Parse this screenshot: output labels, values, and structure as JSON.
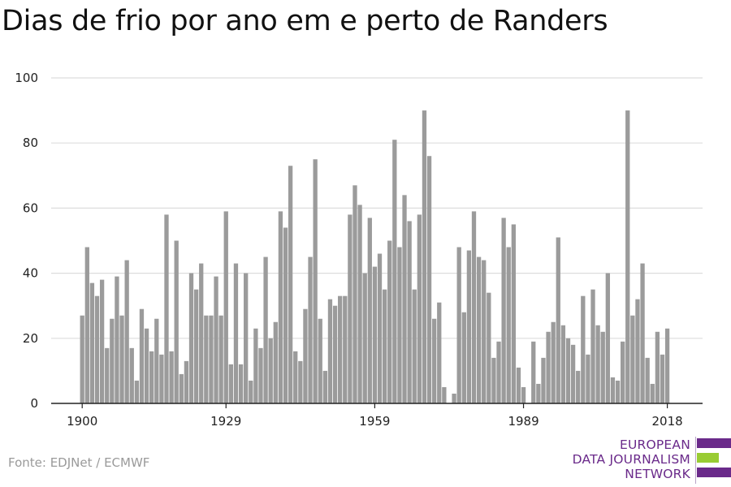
{
  "title": "Dias de frio por ano em e perto de Randers",
  "source": "Fonte: EDJNet / ECMWF",
  "logo": {
    "lines": [
      "EUROPEAN",
      "DATA JOURNALISM",
      "NETWORK"
    ],
    "colors": {
      "purple": "#6a2a8a",
      "green": "#99cc33"
    }
  },
  "colors": {
    "bar": "#9b9b9b",
    "grid": "#dddddd",
    "axis": "#222222"
  },
  "chart_data": {
    "type": "bar",
    "title": "Dias de frio por ano em e perto de Randers",
    "xlabel": "",
    "ylabel": "",
    "ylim": [
      0,
      100
    ],
    "yticks": [
      0,
      20,
      40,
      60,
      80,
      100
    ],
    "xticks": [
      1900,
      1929,
      1959,
      1989,
      2018
    ],
    "grid": true,
    "x": [
      1900,
      1901,
      1902,
      1903,
      1904,
      1905,
      1906,
      1907,
      1908,
      1909,
      1910,
      1911,
      1912,
      1913,
      1914,
      1915,
      1916,
      1917,
      1918,
      1919,
      1920,
      1921,
      1922,
      1923,
      1924,
      1925,
      1926,
      1927,
      1928,
      1929,
      1930,
      1931,
      1932,
      1933,
      1934,
      1935,
      1936,
      1937,
      1938,
      1939,
      1940,
      1941,
      1942,
      1943,
      1944,
      1945,
      1946,
      1947,
      1948,
      1949,
      1950,
      1951,
      1952,
      1953,
      1954,
      1955,
      1956,
      1957,
      1958,
      1959,
      1960,
      1961,
      1962,
      1963,
      1964,
      1965,
      1966,
      1967,
      1968,
      1969,
      1970,
      1971,
      1972,
      1973,
      1974,
      1975,
      1976,
      1977,
      1978,
      1979,
      1980,
      1981,
      1982,
      1983,
      1984,
      1985,
      1986,
      1987,
      1988,
      1989,
      1990,
      1991,
      1992,
      1993,
      1994,
      1995,
      1996,
      1997,
      1998,
      1999,
      2000,
      2001,
      2002,
      2003,
      2004,
      2005,
      2006,
      2007,
      2008,
      2009,
      2010,
      2011,
      2012,
      2013,
      2014,
      2015,
      2016,
      2017,
      2018
    ],
    "values": [
      27,
      48,
      37,
      33,
      38,
      17,
      26,
      39,
      27,
      44,
      17,
      7,
      29,
      23,
      16,
      26,
      15,
      58,
      16,
      50,
      9,
      13,
      40,
      35,
      43,
      27,
      27,
      39,
      27,
      59,
      12,
      43,
      12,
      40,
      7,
      23,
      17,
      45,
      20,
      25,
      59,
      54,
      73,
      16,
      13,
      29,
      45,
      75,
      26,
      10,
      32,
      30,
      33,
      33,
      58,
      67,
      61,
      40,
      57,
      42,
      46,
      35,
      50,
      81,
      48,
      64,
      56,
      35,
      58,
      90,
      76,
      26,
      31,
      5,
      0,
      3,
      48,
      28,
      47,
      59,
      45,
      44,
      34,
      14,
      19,
      57,
      48,
      55,
      11,
      5,
      0,
      19,
      6,
      14,
      22,
      25,
      51,
      24,
      20,
      18,
      10,
      33,
      15,
      35,
      24,
      22,
      40,
      8,
      7,
      19,
      90,
      27,
      32,
      43,
      14,
      6,
      22,
      15,
      23
    ]
  }
}
